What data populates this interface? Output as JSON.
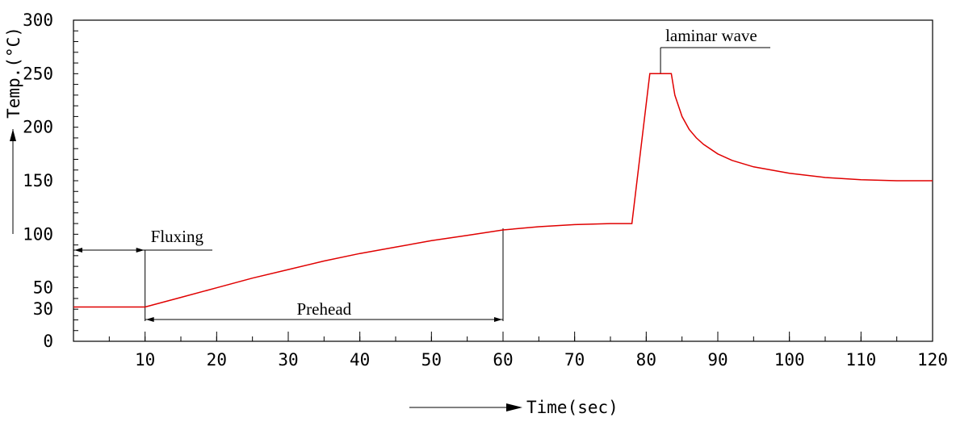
{
  "chart_data": {
    "type": "line",
    "title": "",
    "xlabel": "Time(sec)",
    "ylabel": "Temp.(°C)",
    "xlim": [
      0,
      120
    ],
    "ylim": [
      0,
      300
    ],
    "x_ticks": [
      10,
      20,
      30,
      40,
      50,
      60,
      70,
      80,
      90,
      100,
      110,
      120
    ],
    "y_ticks": [
      0,
      30,
      50,
      100,
      150,
      200,
      250,
      300
    ],
    "grid": false,
    "line_color": "#e00000",
    "series": [
      {
        "x": [
          0,
          10,
          15,
          20,
          25,
          30,
          35,
          40,
          45,
          50,
          55,
          60,
          65,
          70,
          75,
          78,
          80.5,
          83.5,
          84,
          85,
          86,
          87,
          88,
          90,
          92,
          95,
          100,
          105,
          110,
          115,
          120
        ],
        "y": [
          32,
          32,
          41,
          50,
          59,
          67,
          75,
          82,
          88,
          94,
          99,
          104,
          107,
          109,
          110,
          110,
          250,
          250,
          230,
          210,
          198,
          190,
          184,
          175,
          169,
          163,
          157,
          153,
          151,
          150,
          150
        ]
      }
    ],
    "annotations": {
      "fluxing": {
        "label": "Fluxing",
        "x_start": 0,
        "x_end": 10
      },
      "prehead": {
        "label": "Prehead",
        "x_start": 10,
        "x_end": 60
      },
      "laminar": {
        "label": "laminar wave",
        "x": 82
      }
    }
  }
}
